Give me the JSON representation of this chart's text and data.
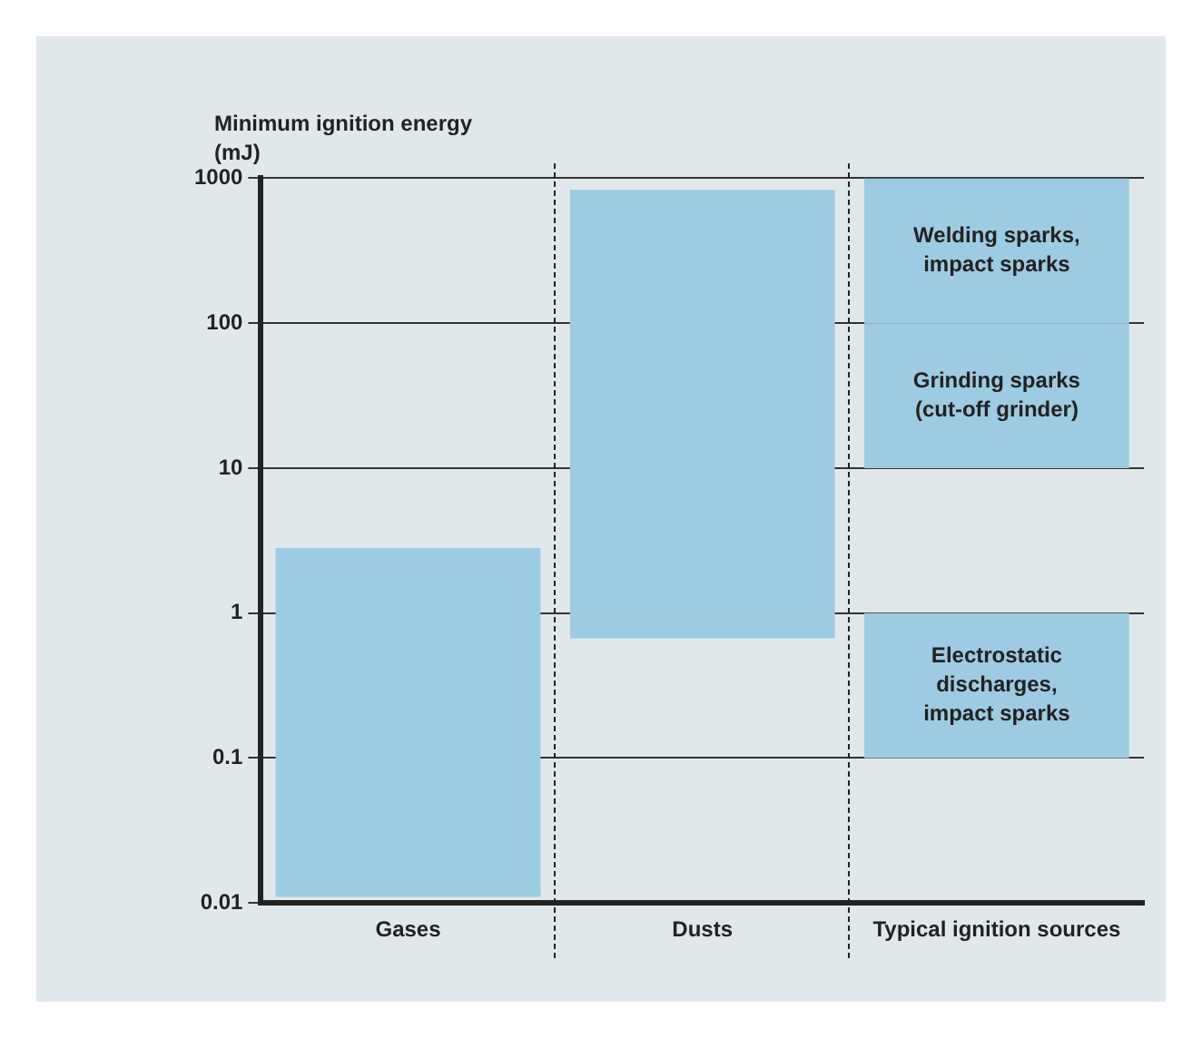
{
  "chart_data": {
    "type": "bar",
    "ylabel": "Minimum ignition energy (mJ)",
    "categories": [
      "Gases",
      "Dusts",
      "Typical ignition sources"
    ],
    "series": [
      {
        "color": "#9dcbe2",
        "base": [
          0.011,
          0.67,
          0.1
        ],
        "values": [
          2.8,
          830,
          0.9
        ]
      },
      {
        "color": "#9dcbe2",
        "x": [
          "Typical ignition sources"
        ],
        "base": [
          10
        ],
        "values": [
          90
        ]
      },
      {
        "color": "#9dcbe2",
        "x": [
          "Typical ignition sources"
        ],
        "base": [
          100
        ],
        "values": [
          900
        ]
      }
    ],
    "log": true,
    "ylim": [
      0.01,
      1000
    ],
    "yticks": [
      0.01,
      0.1,
      1,
      10,
      100,
      1000
    ],
    "grid": "y",
    "annotations": [
      "Welding sparks,\nimpact sparks",
      "Grinding sparks\n(cut-off grinder)",
      "Electrostatic\ndischarges,\nimpact sparks"
    ]
  }
}
